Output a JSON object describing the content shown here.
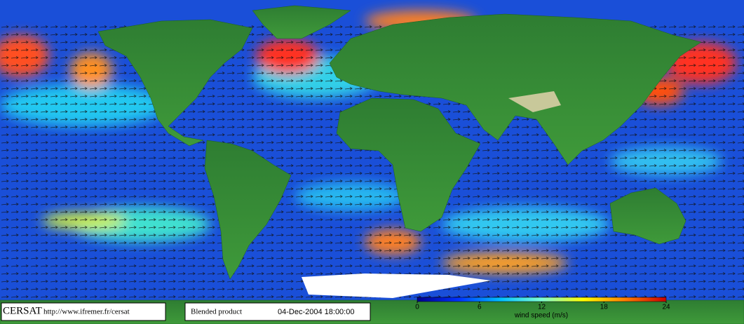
{
  "footer": {
    "logo": "CERSAT",
    "url": "http://www.ifremer.fr/cersat",
    "product": "Blended product",
    "datetime": "04-Dec-2004 18:00:00"
  },
  "colorbar": {
    "label": "wind speed (m/s)",
    "lim": [
      0,
      24
    ],
    "ticks": [
      0,
      6,
      12,
      18,
      24
    ],
    "colors": [
      "#00008b",
      "#0033ff",
      "#00bfff",
      "#7fffd4",
      "#ffff00",
      "#ff8000",
      "#cc0000"
    ]
  }
}
